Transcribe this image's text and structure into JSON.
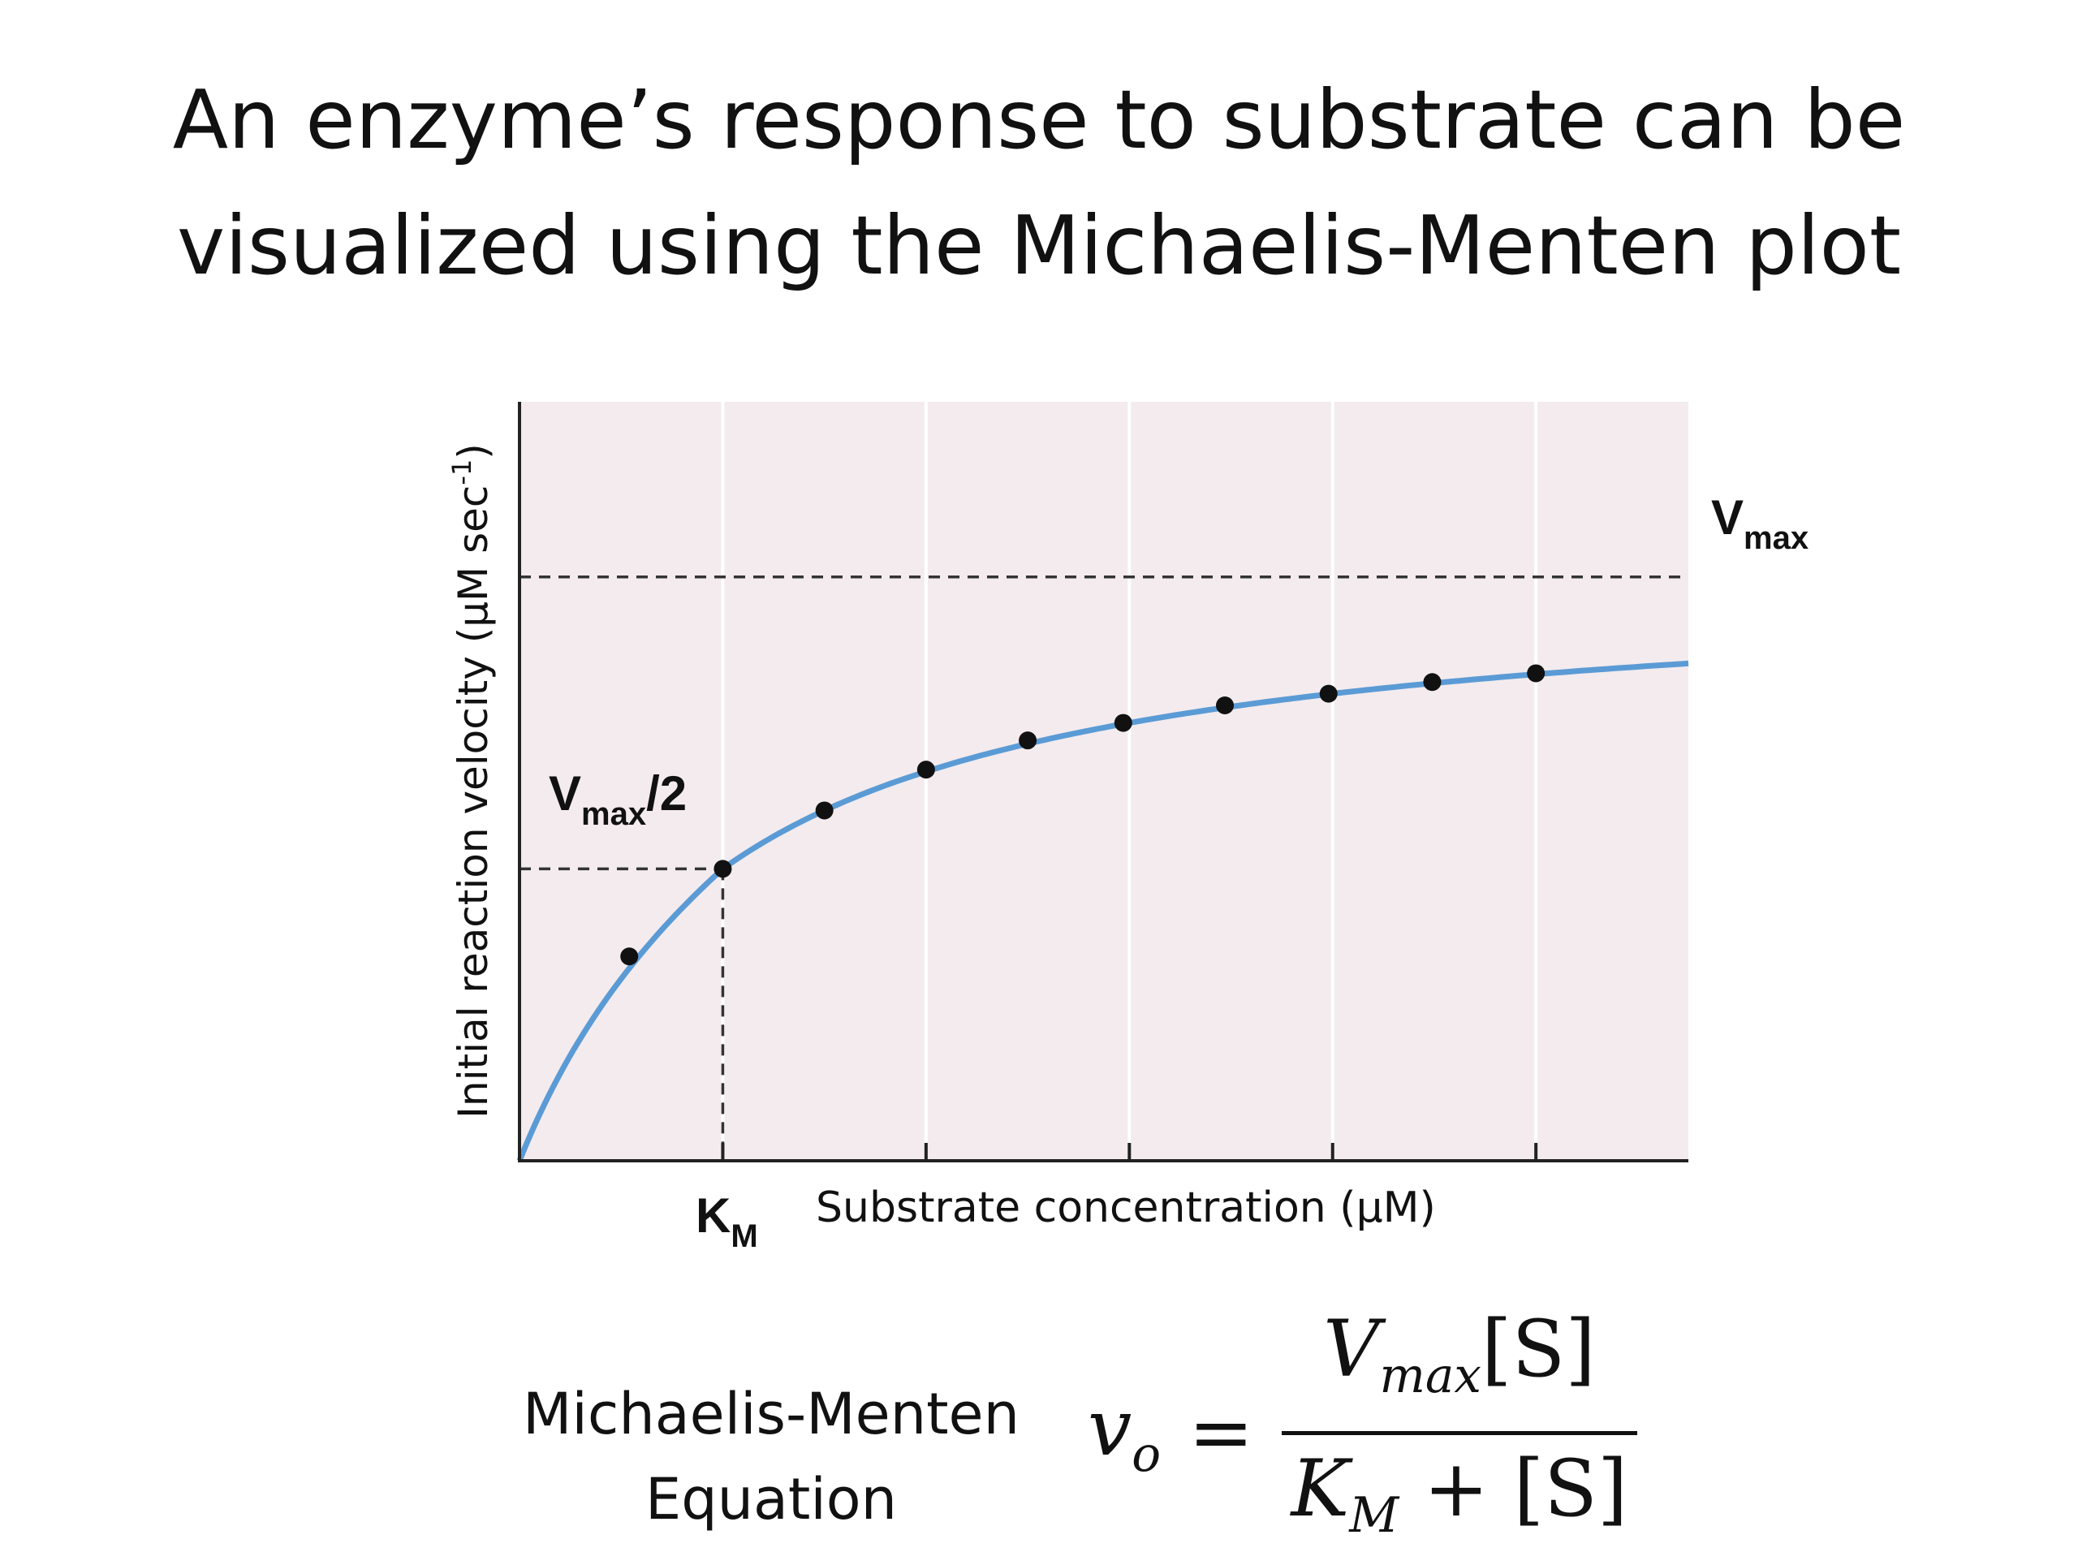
{
  "slide": {
    "title_line1": "An enzyme’s response to substrate can be",
    "title_line2": "visualized using the Michaelis-Menten plot",
    "equation_label_line1": "Michaelis-Menten",
    "equation_label_line2": "Equation",
    "equation": {
      "lhs_var": "v",
      "lhs_sub": "o",
      "equals": "=",
      "num_var": "V",
      "num_sub": "max",
      "num_rest": "[S]",
      "den_var": "K",
      "den_sub": "M",
      "den_rest": " + [S]"
    }
  },
  "chart_data": {
    "type": "scatter",
    "title": "",
    "xlabel": "Substrate concentration (µM)",
    "ylabel_main": "Initial reaction velocity (µM sec",
    "ylabel_sup": "-1",
    "ylabel_close": ")",
    "xlim": [
      0,
      5.75
    ],
    "ylim": [
      0,
      1.3
    ],
    "grid": true,
    "x_ticks": [
      1,
      2,
      3,
      4,
      5
    ],
    "vmax": 1.0,
    "km": 1.0,
    "vmax_label_main": "V",
    "vmax_label_sub": "max",
    "half_label_main": "V",
    "half_label_sub": "max",
    "half_label_rest": "/2",
    "km_label_main": "K",
    "km_label_sub": "M",
    "points": [
      {
        "x": 0.54,
        "y": 0.35
      },
      {
        "x": 1.0,
        "y": 0.5
      },
      {
        "x": 1.5,
        "y": 0.6
      },
      {
        "x": 2.0,
        "y": 0.67
      },
      {
        "x": 2.5,
        "y": 0.72
      },
      {
        "x": 2.97,
        "y": 0.75
      },
      {
        "x": 3.47,
        "y": 0.78
      },
      {
        "x": 3.98,
        "y": 0.8
      },
      {
        "x": 4.49,
        "y": 0.82
      },
      {
        "x": 5.0,
        "y": 0.835
      }
    ],
    "colors": {
      "plot_background": "#f3ebee",
      "curve": "#5b9bd5",
      "points": "#111111",
      "grid": "#ffffff",
      "axes": "#222222"
    }
  }
}
